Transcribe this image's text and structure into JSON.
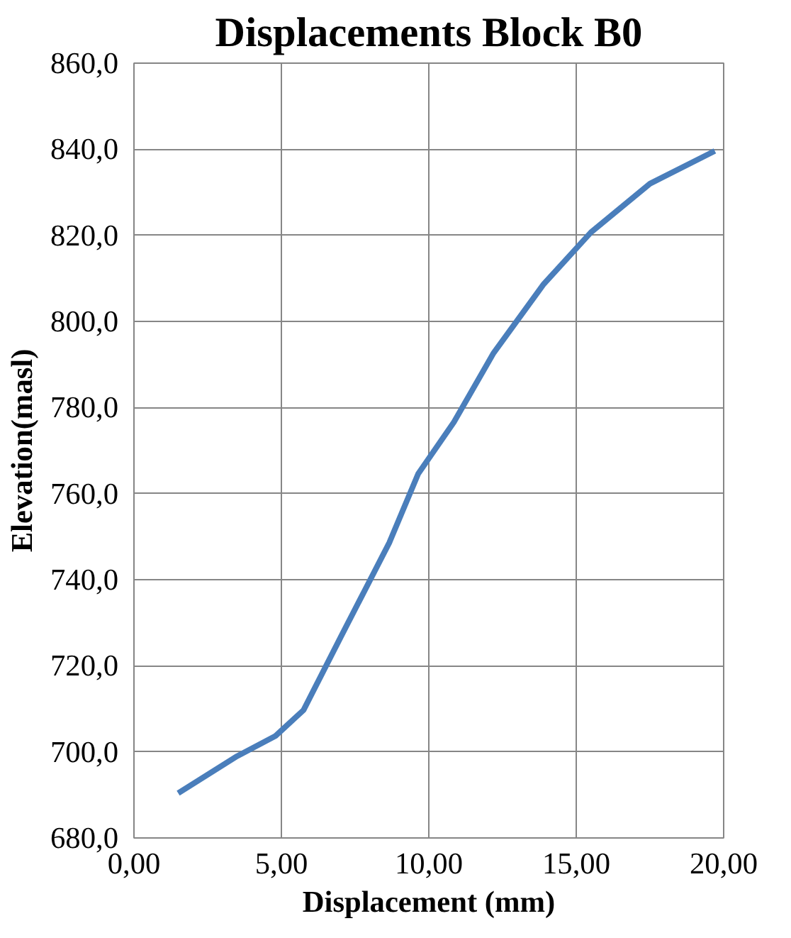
{
  "chart_data": {
    "type": "line",
    "title": "Displacements Block B0",
    "xlabel": "Displacement (mm)",
    "ylabel": "Elevation(masl)",
    "x": [
      1.5,
      3.5,
      4.8,
      5.75,
      7.0,
      8.66,
      9.64,
      10.85,
      12.2,
      13.9,
      15.5,
      17.5,
      19.7
    ],
    "series": [
      {
        "color": "#4a7ebb",
        "values": [
          690.4,
          699,
          703.7,
          709.7,
          726.5,
          748.6,
          764.6,
          776.6,
          792.7,
          808.7,
          820.7,
          832,
          839.6
        ]
      }
    ],
    "xlim": [
      0,
      20
    ],
    "ylim": [
      680,
      860
    ],
    "xticks": [
      {
        "value": 0,
        "label": "0,00"
      },
      {
        "value": 5,
        "label": "5,00"
      },
      {
        "value": 10,
        "label": "10,00"
      },
      {
        "value": 15,
        "label": "15,00"
      },
      {
        "value": 20,
        "label": "20,00"
      }
    ],
    "yticks": [
      {
        "value": 680,
        "label": "680,0"
      },
      {
        "value": 700,
        "label": "700,0"
      },
      {
        "value": 720,
        "label": "720,0"
      },
      {
        "value": 740,
        "label": "740,0"
      },
      {
        "value": 760,
        "label": "760,0"
      },
      {
        "value": 780,
        "label": "780,0"
      },
      {
        "value": 800,
        "label": "800,0"
      },
      {
        "value": 820,
        "label": "820,0"
      },
      {
        "value": 840,
        "label": "840,0"
      },
      {
        "value": 860,
        "label": "860,0"
      }
    ],
    "grid": true,
    "line_style": "solid"
  }
}
